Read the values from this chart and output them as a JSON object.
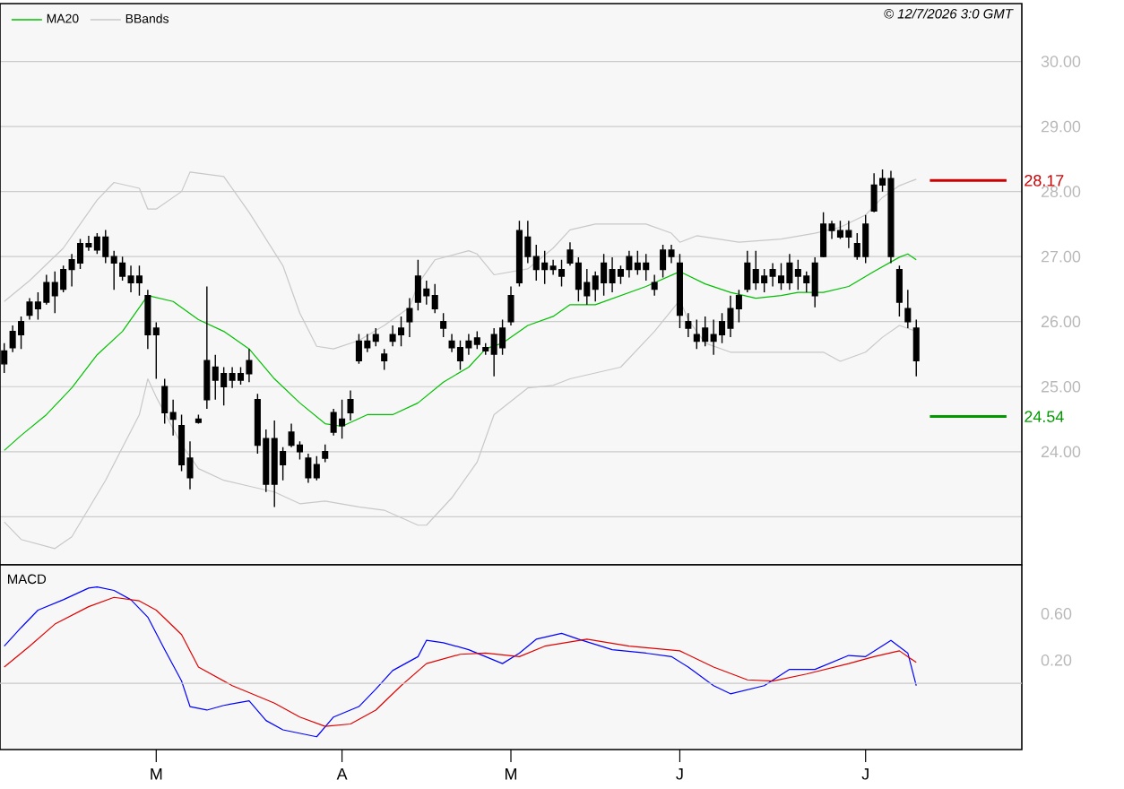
{
  "chart_data": [
    {
      "type": "candlestick",
      "annotations": [
        "© 12/7/2026 3:0 GMT"
      ],
      "legend": "top left",
      "grid": "y",
      "tick_labels": "y",
      "ylim": [
        22.26,
        30.89
      ],
      "yticks": [
        {
          "value": 23,
          "label": null
        },
        {
          "value": 24,
          "label": "24.00"
        },
        {
          "value": 25,
          "label": "25.00"
        },
        {
          "value": 26,
          "label": "26.00"
        },
        {
          "value": 27,
          "label": "27.00"
        },
        {
          "value": 28,
          "label": "28.00"
        },
        {
          "value": 29,
          "label": "29.00"
        },
        {
          "value": 30,
          "label": "30.00"
        }
      ],
      "ref_lines": [
        {
          "axis": "y",
          "value": 28.17,
          "label": "28.17",
          "color": "#cc0000"
        },
        {
          "axis": "y",
          "value": 24.54,
          "label": "24.54",
          "color": "#009900"
        }
      ],
      "categories": [
        null,
        null,
        null,
        null,
        null,
        null,
        null,
        null,
        null,
        null,
        null,
        null,
        null,
        null,
        null,
        null,
        null,
        null,
        null,
        null,
        null,
        null,
        null,
        null,
        null,
        null,
        null,
        null,
        null,
        null,
        null,
        null,
        null,
        null,
        null,
        null,
        null,
        null,
        null,
        null,
        null,
        null,
        null,
        null,
        null,
        null,
        null,
        null,
        null,
        null,
        null,
        null,
        null,
        null,
        null,
        null,
        null,
        null,
        null,
        null,
        null,
        null,
        null,
        null,
        null,
        null,
        null,
        null,
        null,
        null,
        null,
        null,
        null,
        null,
        null,
        null,
        null,
        null,
        null,
        null,
        null,
        null,
        null,
        null,
        null,
        null,
        null,
        null,
        null,
        null,
        null,
        null,
        null,
        null,
        null,
        null,
        null,
        null,
        null,
        null,
        null,
        null,
        null,
        null,
        null,
        null,
        null,
        null,
        null,
        null,
        null,
        null,
        null,
        null,
        null,
        null,
        null,
        null,
        null,
        null,
        null
      ],
      "series": [
        {
          "type": "line",
          "name": "MA20",
          "color": "#00c000",
          "values": [
            24.02,
            null,
            24.25,
            null,
            null,
            24.57,
            null,
            null,
            24.98,
            null,
            null,
            25.49,
            null,
            null,
            25.85,
            null,
            null,
            26.4,
            null,
            null,
            26.31,
            null,
            null,
            26.03,
            null,
            null,
            25.85,
            null,
            null,
            25.58,
            null,
            null,
            25.12,
            null,
            null,
            24.75,
            null,
            null,
            24.43,
            null,
            24.39,
            null,
            null,
            24.57,
            null,
            null,
            24.57,
            null,
            null,
            24.75,
            null,
            null,
            25.07,
            null,
            null,
            25.3,
            null,
            25.58,
            null,
            25.67,
            null,
            null,
            25.94,
            null,
            null,
            26.08,
            null,
            26.26,
            null,
            null,
            26.26,
            null,
            null,
            26.4,
            null,
            null,
            26.54,
            null,
            null,
            null,
            26.77,
            null,
            null,
            26.58,
            null,
            null,
            26.45,
            null,
            null,
            26.36,
            null,
            null,
            26.4,
            null,
            26.45,
            null,
            null,
            26.45,
            null,
            null,
            26.54,
            null,
            null,
            26.77,
            null,
            null,
            26.99,
            27.04,
            26.95,
            null,
            null,
            null,
            null,
            null,
            null,
            null,
            null,
            null,
            null,
            null,
            null
          ]
        },
        {
          "type": "line",
          "name": "BBands",
          "color": "#c8c8c8",
          "values": [
            26.31,
            null,
            null,
            26.63,
            null,
            null,
            null,
            27.13,
            null,
            null,
            null,
            27.87,
            null,
            28.14,
            null,
            null,
            28.05,
            27.73,
            27.73,
            null,
            null,
            28.0,
            28.3,
            null,
            null,
            null,
            28.23,
            null,
            null,
            27.68,
            null,
            null,
            null,
            26.86,
            null,
            26.13,
            null,
            25.62,
            null,
            25.58,
            null,
            null,
            25.71,
            null,
            null,
            25.94,
            null,
            null,
            26.22,
            26.58,
            null,
            26.95,
            null,
            null,
            null,
            27.09,
            27.04,
            null,
            26.72,
            null,
            null,
            null,
            26.81,
            null,
            null,
            27.13,
            null,
            27.41,
            null,
            null,
            27.5,
            null,
            null,
            null,
            null,
            null,
            27.5,
            null,
            null,
            27.36,
            27.22,
            null,
            27.32,
            null,
            null,
            null,
            null,
            27.22,
            null,
            null,
            null,
            null,
            27.27,
            null,
            null,
            null,
            27.36,
            null,
            null,
            27.45,
            null,
            null,
            27.64,
            null,
            27.91,
            null,
            28.09,
            null,
            28.19,
            null,
            null,
            null,
            null,
            null,
            null,
            null,
            null,
            null,
            null,
            null,
            null
          ]
        },
        {
          "type": "line",
          "color": "#c8c8c8",
          "values": [
            22.92,
            null,
            22.65,
            null,
            null,
            null,
            22.51,
            null,
            22.69,
            null,
            null,
            null,
            23.56,
            null,
            null,
            null,
            24.57,
            25.12,
            24.84,
            null,
            null,
            24.11,
            null,
            23.74,
            null,
            null,
            23.56,
            null,
            null,
            23.47,
            null,
            null,
            23.38,
            null,
            null,
            23.2,
            null,
            null,
            23.24,
            null,
            null,
            null,
            23.15,
            null,
            null,
            23.1,
            null,
            null,
            null,
            22.87,
            22.87,
            null,
            null,
            23.29,
            null,
            null,
            23.84,
            null,
            24.57,
            null,
            null,
            null,
            24.98,
            null,
            null,
            25.02,
            null,
            25.12,
            null,
            null,
            null,
            null,
            null,
            25.3,
            null,
            null,
            null,
            25.85,
            null,
            null,
            26.33,
            26.03,
            null,
            25.67,
            null,
            null,
            25.53,
            null,
            null,
            null,
            null,
            null,
            25.53,
            null,
            null,
            null,
            null,
            25.53,
            null,
            25.39,
            null,
            null,
            25.53,
            null,
            25.76,
            null,
            25.94,
            null,
            25.85,
            null,
            null,
            null,
            null,
            null,
            null,
            null,
            null,
            null,
            null,
            null,
            null
          ]
        },
        {
          "type": "candlestick",
          "color": "#000000",
          "ohlc": [
            [
              25.35,
              25.67,
              25.21,
              25.55
            ],
            [
              25.6,
              25.94,
              25.53,
              25.85
            ],
            [
              25.8,
              26.08,
              25.58,
              26.0
            ],
            [
              26.1,
              26.36,
              26.03,
              26.3
            ],
            [
              26.3,
              26.45,
              26.03,
              26.2
            ],
            [
              26.3,
              26.72,
              26.26,
              26.6
            ],
            [
              26.6,
              26.77,
              26.13,
              26.4
            ],
            [
              26.5,
              26.86,
              26.45,
              26.8
            ],
            [
              26.8,
              27.04,
              26.54,
              26.95
            ],
            [
              26.9,
              27.27,
              26.81,
              27.2
            ],
            [
              27.2,
              27.32,
              27.09,
              27.15
            ],
            [
              27.1,
              27.36,
              27.04,
              27.3
            ],
            [
              27.3,
              27.41,
              26.9,
              27.0
            ],
            [
              27.0,
              27.09,
              26.49,
              26.9
            ],
            [
              26.9,
              27.0,
              26.63,
              26.7
            ],
            [
              26.7,
              26.86,
              26.45,
              26.6
            ],
            [
              26.6,
              26.86,
              26.4,
              26.7
            ],
            [
              26.4,
              26.49,
              25.58,
              25.8
            ],
            [
              25.8,
              25.99,
              25.12,
              25.9
            ],
            [
              25.0,
              25.12,
              24.43,
              24.6
            ],
            [
              24.6,
              24.8,
              24.25,
              24.5
            ],
            [
              24.4,
              24.57,
              23.7,
              23.8
            ],
            [
              23.9,
              24.16,
              23.42,
              23.6
            ],
            [
              24.45,
              24.57,
              24.43,
              24.5
            ],
            [
              24.8,
              26.54,
              24.66,
              25.4
            ],
            [
              25.3,
              25.49,
              24.8,
              25.1
            ],
            [
              25.0,
              25.3,
              24.71,
              25.2
            ],
            [
              25.1,
              25.3,
              24.98,
              25.2
            ],
            [
              25.2,
              25.3,
              25.03,
              25.1
            ],
            [
              25.2,
              25.58,
              25.07,
              25.4
            ],
            [
              24.8,
              24.89,
              23.97,
              24.1
            ],
            [
              24.2,
              24.34,
              23.38,
              23.5
            ],
            [
              23.5,
              24.48,
              23.15,
              24.2
            ],
            [
              24.0,
              24.07,
              23.56,
              23.8
            ],
            [
              24.1,
              24.43,
              24.07,
              24.3
            ],
            [
              24.1,
              24.16,
              23.88,
              24.0
            ],
            [
              23.9,
              23.97,
              23.52,
              23.6
            ],
            [
              23.6,
              23.93,
              23.56,
              23.8
            ],
            [
              23.9,
              24.11,
              23.84,
              24.0
            ],
            [
              24.3,
              24.66,
              24.25,
              24.6
            ],
            [
              24.5,
              24.8,
              24.2,
              24.4
            ],
            [
              24.6,
              24.94,
              24.48,
              24.8
            ],
            [
              25.4,
              25.81,
              25.35,
              25.7
            ],
            [
              25.6,
              25.81,
              25.53,
              25.7
            ],
            [
              25.7,
              25.9,
              25.62,
              25.8
            ],
            [
              25.5,
              25.58,
              25.26,
              25.4
            ],
            [
              25.7,
              25.94,
              25.62,
              25.8
            ],
            [
              25.8,
              26.08,
              25.62,
              25.9
            ],
            [
              26.0,
              26.36,
              25.76,
              26.2
            ],
            [
              26.3,
              26.95,
              26.17,
              26.7
            ],
            [
              26.5,
              26.63,
              26.26,
              26.4
            ],
            [
              26.4,
              26.58,
              26.13,
              26.2
            ],
            [
              26.0,
              26.13,
              25.76,
              25.9
            ],
            [
              25.7,
              25.81,
              25.53,
              25.6
            ],
            [
              25.6,
              25.71,
              25.26,
              25.4
            ],
            [
              25.6,
              25.81,
              25.49,
              25.7
            ],
            [
              25.65,
              25.85,
              25.58,
              25.75
            ],
            [
              25.6,
              25.67,
              25.49,
              25.55
            ],
            [
              25.5,
              25.9,
              25.16,
              25.8
            ],
            [
              25.6,
              26.03,
              25.49,
              25.9
            ],
            [
              26.0,
              26.54,
              25.94,
              26.4
            ],
            [
              26.6,
              27.55,
              26.54,
              27.4
            ],
            [
              27.3,
              27.55,
              26.9,
              27.0
            ],
            [
              27.0,
              27.18,
              26.63,
              26.8
            ],
            [
              26.8,
              27.09,
              26.58,
              26.9
            ],
            [
              26.8,
              26.95,
              26.72,
              26.85
            ],
            [
              26.8,
              26.95,
              26.54,
              26.7
            ],
            [
              26.9,
              27.22,
              26.86,
              27.1
            ],
            [
              26.9,
              26.99,
              26.31,
              26.5
            ],
            [
              26.4,
              26.81,
              26.26,
              26.6
            ],
            [
              26.5,
              26.77,
              26.31,
              26.7
            ],
            [
              26.6,
              27.04,
              26.4,
              26.9
            ],
            [
              26.8,
              26.99,
              26.45,
              26.6
            ],
            [
              26.7,
              26.86,
              26.58,
              26.8
            ],
            [
              26.8,
              27.09,
              26.68,
              27.0
            ],
            [
              26.9,
              27.09,
              26.72,
              26.8
            ],
            [
              26.8,
              27.04,
              26.63,
              26.9
            ],
            [
              26.6,
              26.72,
              26.4,
              26.5
            ],
            [
              26.8,
              27.18,
              26.68,
              27.1
            ],
            [
              27.0,
              27.18,
              26.9,
              27.1
            ],
            [
              26.9,
              27.04,
              25.9,
              26.1
            ],
            [
              26.0,
              26.13,
              25.76,
              25.9
            ],
            [
              25.8,
              26.03,
              25.58,
              25.7
            ],
            [
              25.7,
              26.08,
              25.62,
              25.9
            ],
            [
              25.8,
              26.03,
              25.49,
              25.7
            ],
            [
              25.8,
              26.13,
              25.67,
              26.0
            ],
            [
              25.9,
              26.4,
              25.76,
              26.2
            ],
            [
              26.2,
              26.49,
              25.99,
              26.4
            ],
            [
              26.5,
              27.09,
              26.45,
              26.9
            ],
            [
              26.8,
              27.09,
              26.49,
              26.6
            ],
            [
              26.6,
              26.81,
              26.45,
              26.7
            ],
            [
              26.7,
              26.9,
              26.54,
              26.8
            ],
            [
              26.7,
              26.9,
              26.49,
              26.6
            ],
            [
              26.6,
              27.04,
              26.49,
              26.9
            ],
            [
              26.8,
              26.95,
              26.49,
              26.7
            ],
            [
              26.7,
              26.77,
              26.45,
              26.6
            ],
            [
              26.4,
              26.99,
              26.22,
              26.9
            ],
            [
              27.0,
              27.68,
              26.99,
              27.5
            ],
            [
              27.4,
              27.55,
              27.27,
              27.5
            ],
            [
              27.4,
              27.55,
              27.27,
              27.3
            ],
            [
              27.3,
              27.55,
              27.13,
              27.4
            ],
            [
              27.2,
              27.36,
              26.95,
              27.0
            ],
            [
              27.0,
              27.64,
              26.9,
              27.5
            ],
            [
              27.7,
              28.28,
              27.68,
              28.1
            ],
            [
              28.1,
              28.34,
              28.0,
              28.2
            ],
            [
              28.2,
              28.32,
              26.9,
              27.0
            ],
            [
              26.8,
              26.86,
              26.08,
              26.3
            ],
            [
              26.2,
              26.49,
              25.9,
              26.0
            ],
            [
              25.9,
              26.03,
              25.16,
              25.4
            ],
            null,
            null,
            null,
            null,
            null,
            null,
            null,
            null,
            null,
            null,
            null,
            null
          ]
        }
      ]
    },
    {
      "type": "line",
      "title": "MACD",
      "ylim": [
        -0.57,
        1.02
      ],
      "categories": [
        null,
        null,
        null,
        null,
        null,
        null,
        null,
        null,
        null,
        null,
        null,
        null,
        null,
        null,
        null,
        null,
        null,
        null,
        "M",
        null,
        null,
        null,
        null,
        null,
        null,
        null,
        null,
        null,
        null,
        null,
        null,
        null,
        null,
        null,
        null,
        null,
        null,
        null,
        null,
        null,
        "A",
        null,
        null,
        null,
        null,
        null,
        null,
        null,
        null,
        null,
        null,
        null,
        null,
        null,
        null,
        null,
        null,
        null,
        null,
        null,
        "M",
        null,
        null,
        null,
        null,
        null,
        null,
        null,
        null,
        null,
        null,
        null,
        null,
        null,
        null,
        null,
        null,
        null,
        null,
        null,
        "J",
        null,
        null,
        null,
        null,
        null,
        null,
        null,
        null,
        null,
        null,
        null,
        null,
        null,
        null,
        null,
        null,
        null,
        null,
        null,
        null,
        null,
        "J",
        null,
        null,
        null,
        null,
        null,
        null,
        null,
        null,
        null,
        null,
        null,
        null,
        null,
        null,
        null,
        null,
        null,
        null
      ],
      "yticks": [
        {
          "value": 0.2,
          "label": "0.20"
        },
        {
          "value": 0.6,
          "label": "0.60"
        }
      ],
      "ref_lines": [
        {
          "axis": "y",
          "value": 0,
          "color": "#c8c8c8"
        }
      ],
      "series": [
        {
          "color": "#0000ff",
          "values": [
            0.32,
            null,
            0.48,
            null,
            0.63,
            null,
            null,
            0.72,
            null,
            null,
            0.82,
            0.83,
            null,
            0.8,
            null,
            0.72,
            null,
            0.57,
            null,
            0.29,
            null,
            0.02,
            -0.2,
            null,
            -0.23,
            null,
            -0.19,
            null,
            null,
            -0.15,
            null,
            -0.32,
            null,
            -0.4,
            null,
            null,
            null,
            -0.46,
            null,
            -0.29,
            null,
            null,
            -0.2,
            null,
            -0.05,
            null,
            0.11,
            null,
            null,
            0.23,
            0.37,
            null,
            0.35,
            null,
            null,
            0.29,
            null,
            0.23,
            null,
            0.17,
            null,
            0.26,
            null,
            0.38,
            null,
            null,
            0.43,
            null,
            0.38,
            null,
            null,
            null,
            0.29,
            null,
            null,
            null,
            0.26,
            null,
            null,
            0.23,
            null,
            0.14,
            null,
            null,
            -0.02,
            null,
            -0.09,
            null,
            null,
            null,
            -0.02,
            null,
            null,
            0.12,
            null,
            null,
            0.12,
            null,
            null,
            null,
            0.24,
            null,
            0.23,
            null,
            null,
            0.37,
            null,
            0.26,
            -0.02,
            null,
            null,
            null,
            null,
            null,
            null,
            null,
            null,
            null,
            null,
            null,
            null
          ]
        },
        {
          "color": "#e00000",
          "values": [
            0.14,
            null,
            null,
            0.32,
            null,
            null,
            0.51,
            null,
            null,
            null,
            0.66,
            null,
            null,
            0.74,
            null,
            null,
            0.71,
            null,
            0.63,
            null,
            null,
            0.42,
            null,
            0.14,
            null,
            null,
            null,
            -0.02,
            null,
            -0.08,
            null,
            null,
            -0.17,
            null,
            null,
            -0.29,
            null,
            null,
            -0.37,
            null,
            null,
            -0.35,
            null,
            null,
            -0.23,
            null,
            null,
            -0.02,
            null,
            null,
            0.17,
            null,
            null,
            null,
            0.25,
            null,
            null,
            0.26,
            null,
            null,
            null,
            0.23,
            null,
            null,
            0.32,
            null,
            null,
            null,
            null,
            0.38,
            null,
            null,
            null,
            null,
            0.32,
            null,
            null,
            null,
            null,
            null,
            0.28,
            null,
            null,
            null,
            0.14,
            null,
            null,
            null,
            0.03,
            null,
            null,
            0.02,
            null,
            null,
            null,
            0.08,
            null,
            null,
            null,
            null,
            0.17,
            null,
            null,
            0.23,
            null,
            null,
            0.28,
            null,
            0.18,
            null,
            null,
            null,
            null,
            null,
            null,
            null,
            null,
            null,
            null,
            null,
            null
          ]
        }
      ]
    }
  ]
}
